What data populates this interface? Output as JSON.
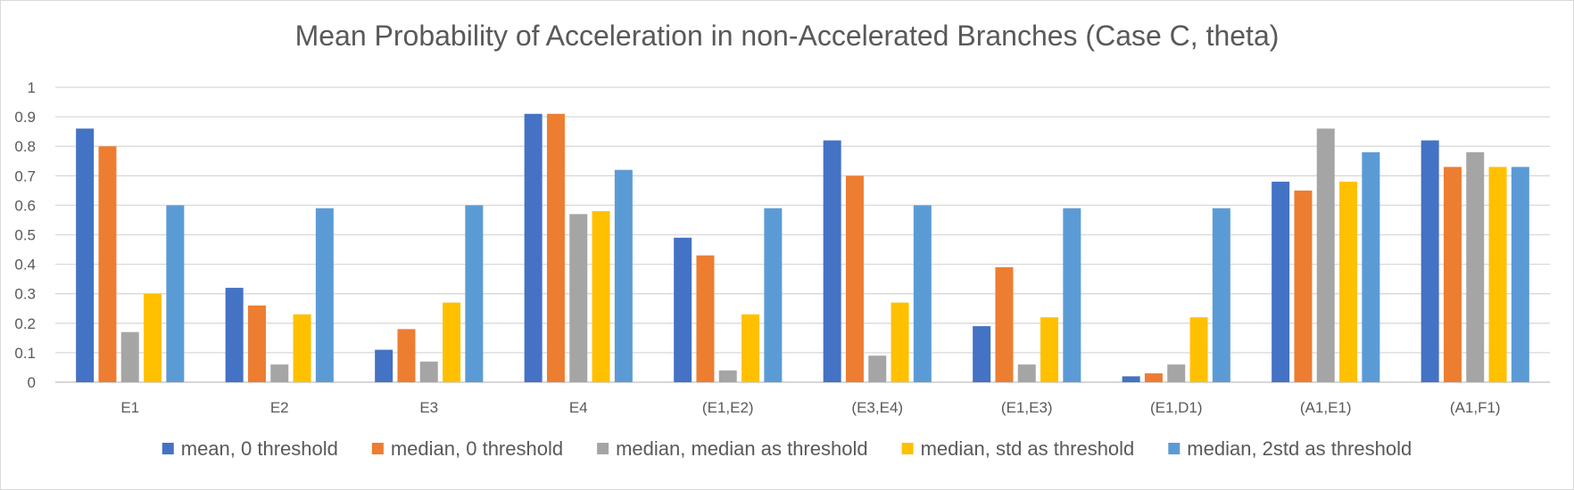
{
  "chart_data": {
    "type": "bar",
    "title": "Mean Probability of Acceleration in non-Accelerated Branches (Case C, theta)",
    "xlabel": "",
    "ylabel": "",
    "ylim": [
      0,
      1
    ],
    "yticks": [
      "0",
      "0.1",
      "0.2",
      "0.3",
      "0.4",
      "0.5",
      "0.6",
      "0.7",
      "0.8",
      "0.9",
      "1"
    ],
    "grid": true,
    "legend_position": "bottom",
    "categories": [
      "E1",
      "E2",
      "E3",
      "E4",
      "(E1,E2)",
      "(E3,E4)",
      "(E1,E3)",
      "(E1,D1)",
      "(A1,E1)",
      "(A1,F1)"
    ],
    "series": [
      {
        "name": "mean, 0 threshold",
        "color": "#4472C4",
        "values": [
          0.86,
          0.32,
          0.11,
          0.91,
          0.49,
          0.82,
          0.19,
          0.02,
          0.68,
          0.82
        ]
      },
      {
        "name": "median, 0 threshold",
        "color": "#ED7D31",
        "values": [
          0.8,
          0.26,
          0.18,
          0.91,
          0.43,
          0.7,
          0.39,
          0.03,
          0.65,
          0.73
        ]
      },
      {
        "name": "median, median as threshold",
        "color": "#A5A5A5",
        "values": [
          0.17,
          0.06,
          0.07,
          0.57,
          0.04,
          0.09,
          0.06,
          0.06,
          0.86,
          0.78
        ]
      },
      {
        "name": "median, std as threshold",
        "color": "#FFC000",
        "values": [
          0.3,
          0.23,
          0.27,
          0.58,
          0.23,
          0.27,
          0.22,
          0.22,
          0.68,
          0.73
        ]
      },
      {
        "name": "median, 2std as threshold",
        "color": "#5B9BD5",
        "values": [
          0.6,
          0.59,
          0.6,
          0.72,
          0.59,
          0.6,
          0.59,
          0.59,
          0.78,
          0.73
        ]
      }
    ],
    "grid_color": "#d9d9d9",
    "axis_color": "#bfbfbf"
  }
}
